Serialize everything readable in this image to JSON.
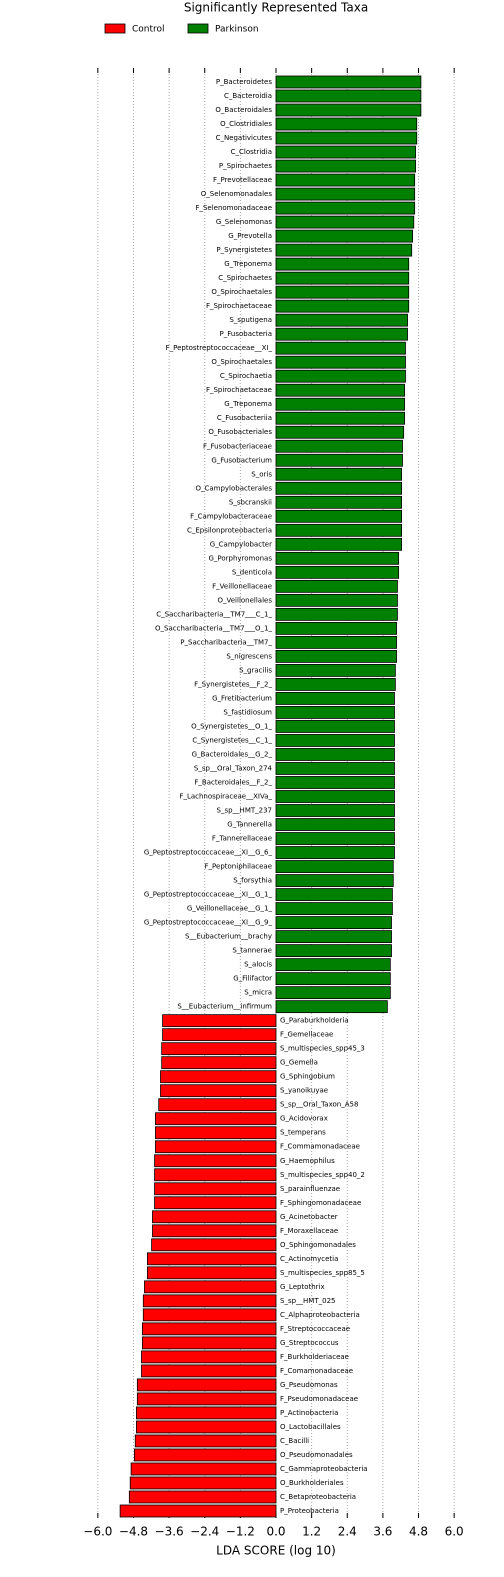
{
  "chart_data": {
    "type": "barh",
    "title": "Significantly Represented Taxa",
    "xlabel": "LDA SCORE (log 10)",
    "categories": [
      "P_Bacteroidetes",
      "C_Bacteroidia",
      "O_Bacteroidales",
      "O_Clostridiales",
      "C_Negativicutes",
      "C_Clostridia",
      "P_Spirochaetes",
      "F_Prevotellaceae",
      "O_Selenomonadales",
      "F_Selenomonadaceae",
      "G_Selenomonas",
      "G_Prevotella",
      "P_Synergistetes",
      "G_Treponema",
      "C_Spirochaetes",
      "O_Spirochaetales",
      "F_Spirochaetaceae",
      "S_sputigena",
      "P_Fusobacteria",
      "F_Peptostreptococcaceae__XI_",
      "O_Spirochaetales",
      "C_Spirochaetia",
      "F_Spirochaetaceae",
      "G_Treponema",
      "C_Fusobacteriia",
      "O_Fusobacteriales",
      "F_Fusobacteriaceae",
      "G_Fusobacterium",
      "S_oris",
      "O_Campylobacterales",
      "S_sbcranskii",
      "F_Campylobacteraceae",
      "C_Epsilonproteobacteria",
      "G_Campylobacter",
      "G_Porphyromonas",
      "S_denticola",
      "F_Veillonellaceae",
      "O_Veillonellales",
      "C_Saccharibacteria__TM7___C_1_",
      "O_Saccharibacteria__TM7___O_1_",
      "P_Saccharibacteria__TM7_",
      "S_nigrescens",
      "S_gracilis",
      "F_Synergistetes__F_2_",
      "G_Fretibacterium",
      "S_fastidiosum",
      "O_Synergistetes__O_1_",
      "C_Synergistetes__C_1_",
      "G_Bacteroidales__G_2_",
      "S_sp__Oral_Taxon_274",
      "F_Bacteroidales__F_2_",
      "F_Lachnospiraceae__XIVa_",
      "S_sp__HMT_237",
      "G_Tannerella",
      "F_Tannerellaceae",
      "G_Peptostreptococcaceae__XI__G_6_",
      "F_Peptoniphilaceae",
      "S_forsythia",
      "G_Peptostreptococcaceae__XI__G_1_",
      "G_Veillonellaceae__G_1_",
      "G_Peptostreptococcaceae__XI__G_9_",
      "S__Eubacterium__brachy",
      "S_tannerae",
      "S_alocis",
      "G_Filifactor",
      "S_micra",
      "S__Eubacterium__infirmum",
      "G_Paraburkholderia",
      "F_Gemellaceae",
      "S_multispecies_spp45_3",
      "G_Gemella",
      "G_Sphingobium",
      "S_yanoikuyae",
      "S_sp__Oral_Taxon_A58",
      "G_Acidovorax",
      "S_temperans",
      "F_Commamonadaceae",
      "G_Haemophilus",
      "S_multispecies_spp40_2",
      "S_parainfluenzae",
      "F_Sphingomonadaceae",
      "G_Acinetobacter",
      "F_Moraxellaceae",
      "O_Sphingomonadales",
      "C_Actinomycetia",
      "S_multispecies_spp85_5",
      "G_Leptothrix",
      "S_sp__HMT_025",
      "C_Alphaproteobacteria",
      "F_Streptococcaceae",
      "G_Streptococcus",
      "F_Burkholderiaceae",
      "F_Comamonadaceae",
      "G_Pseudomonas",
      "F_Pseudomonadaceae",
      "P_Actinobacteria",
      "O_Lactobacillales",
      "C_Bacilli",
      "O_Pseudomonadales",
      "C_Gammaproteobacteria",
      "O_Burkholderiales",
      "C_Betaproteobacteria",
      "P_Proteobacteria"
    ],
    "series": [
      {
        "name": "Control",
        "color": "#ff0000",
        "values": [
          null,
          null,
          null,
          null,
          null,
          null,
          null,
          null,
          null,
          null,
          null,
          null,
          null,
          null,
          null,
          null,
          null,
          null,
          null,
          null,
          null,
          null,
          null,
          null,
          null,
          null,
          null,
          null,
          null,
          null,
          null,
          null,
          null,
          null,
          null,
          null,
          null,
          null,
          null,
          null,
          null,
          null,
          null,
          null,
          null,
          null,
          null,
          null,
          null,
          null,
          null,
          null,
          null,
          null,
          null,
          null,
          null,
          null,
          null,
          null,
          null,
          null,
          null,
          null,
          null,
          null,
          null,
          -3.82,
          -3.82,
          -3.85,
          -3.85,
          -3.89,
          -3.89,
          -3.95,
          -4.06,
          -4.06,
          -4.06,
          -4.09,
          -4.09,
          -4.09,
          -4.09,
          -4.16,
          -4.16,
          -4.19,
          -4.33,
          -4.33,
          -4.43,
          -4.47,
          -4.47,
          -4.5,
          -4.5,
          -4.53,
          -4.53,
          -4.67,
          -4.67,
          -4.7,
          -4.7,
          -4.74,
          -4.77,
          -4.88,
          -4.91,
          -4.94,
          -5.25
        ]
      },
      {
        "name": "Parkinson",
        "color": "#008000",
        "values": [
          4.88,
          4.88,
          4.88,
          4.74,
          4.74,
          4.7,
          4.7,
          4.67,
          4.67,
          4.67,
          4.64,
          4.6,
          4.57,
          4.47,
          4.47,
          4.47,
          4.47,
          4.43,
          4.43,
          4.36,
          4.36,
          4.36,
          4.33,
          4.33,
          4.33,
          4.3,
          4.26,
          4.26,
          4.23,
          4.23,
          4.23,
          4.23,
          4.23,
          4.23,
          4.13,
          4.13,
          4.09,
          4.09,
          4.09,
          4.06,
          4.06,
          4.06,
          4.02,
          4.02,
          3.99,
          3.99,
          3.99,
          3.99,
          3.99,
          3.99,
          3.99,
          3.99,
          3.99,
          3.99,
          3.99,
          3.99,
          3.95,
          3.95,
          3.92,
          3.92,
          3.89,
          3.89,
          3.89,
          3.85,
          3.85,
          3.85,
          3.75,
          null,
          null,
          null,
          null,
          null,
          null,
          null,
          null,
          null,
          null,
          null,
          null,
          null,
          null,
          null,
          null,
          null,
          null,
          null,
          null,
          null,
          null,
          null,
          null,
          null,
          null,
          null,
          null,
          null,
          null,
          null,
          null,
          null,
          null,
          null,
          null
        ]
      }
    ],
    "xlim": [
      -6.5,
      6.5
    ],
    "xticks": [
      {
        "value": -6.0,
        "label": "−6.0"
      },
      {
        "value": -4.8,
        "label": "−4.8"
      },
      {
        "value": -3.6,
        "label": "−3.6"
      },
      {
        "value": -2.4,
        "label": "−2.4"
      },
      {
        "value": -1.2,
        "label": "−1.2"
      },
      {
        "value": 0,
        "label": "0.0"
      },
      {
        "value": 1.2,
        "label": "1.2"
      },
      {
        "value": 2.4,
        "label": "2.4"
      },
      {
        "value": 3.6,
        "label": "3.6"
      },
      {
        "value": 4.8,
        "label": "4.8"
      },
      {
        "value": 6.0,
        "label": "6.0"
      }
    ],
    "grid": true,
    "legend": "upper left"
  }
}
